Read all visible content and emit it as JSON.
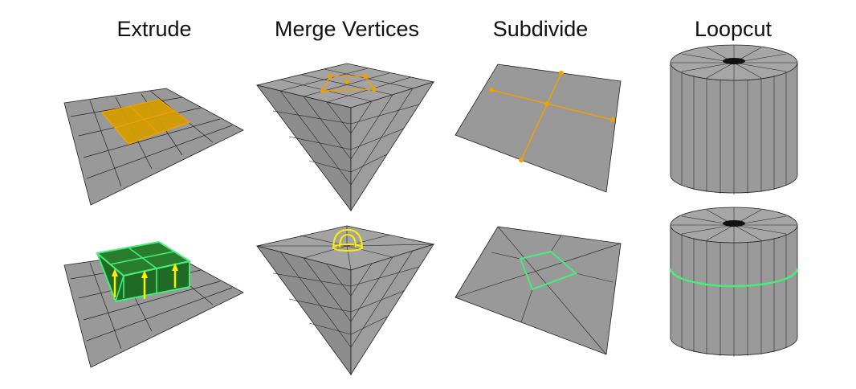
{
  "columns": [
    {
      "id": "extrude",
      "title": "Extrude"
    },
    {
      "id": "merge",
      "title": "Merge Vertices"
    },
    {
      "id": "subdivide",
      "title": "Subdivide"
    },
    {
      "id": "loopcut",
      "title": "Loopcut"
    }
  ],
  "colors": {
    "mesh_face": "#999999",
    "mesh_face_light": "#a4a4a4",
    "mesh_face_dark": "#8a8a8a",
    "edge": "#222222",
    "selection_orange": "#f0a000",
    "selection_fill": "#d39d00",
    "extrude_green": "#227a2a",
    "highlight_green": "#44ee77",
    "arrow_yellow": "#ffee00"
  },
  "icons": [
    "arrow-up-icon",
    "merge-arc-icon"
  ]
}
